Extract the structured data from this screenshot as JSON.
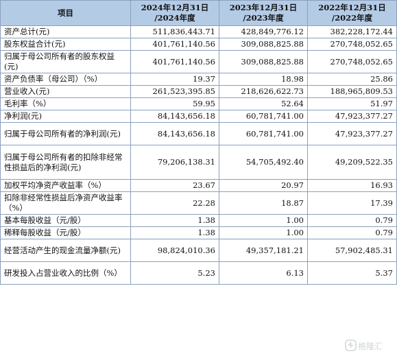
{
  "table": {
    "headers": [
      {
        "line1": "项目",
        "line2": ""
      },
      {
        "line1": "2024年12月31日",
        "line2": "/2024年度"
      },
      {
        "line1": "2023年12月31日",
        "line2": "/2023年度"
      },
      {
        "line1": "2022年12月31日",
        "line2": "/2022年度"
      }
    ],
    "rows": [
      {
        "label": "资产总计(元)",
        "v2024": "511,836,443.71",
        "v2023": "428,849,776.12",
        "v2022": "382,228,172.44"
      },
      {
        "label": "股东权益合计(元)",
        "v2024": "401,761,140.56",
        "v2023": "309,088,825.88",
        "v2022": "270,748,052.65"
      },
      {
        "label": "归属于母公司所有者的股东权益(元)",
        "v2024": "401,761,140.56",
        "v2023": "309,088,825.88",
        "v2022": "270,748,052.65"
      },
      {
        "label": "资产负债率（母公司）（%）",
        "v2024": "19.37",
        "v2023": "18.98",
        "v2022": "25.86"
      },
      {
        "label": "营业收入(元)",
        "v2024": "261,523,395.85",
        "v2023": "218,626,622.73",
        "v2022": "188,965,809.53"
      },
      {
        "label": "毛利率（%）",
        "v2024": "59.95",
        "v2023": "52.64",
        "v2022": "51.97"
      },
      {
        "label": "净利润(元)",
        "v2024": "84,143,656.18",
        "v2023": "60,781,741.00",
        "v2022": "47,923,377.27"
      },
      {
        "label": "归属于母公司所有者的净利润(元)",
        "v2024": "84,143,656.18",
        "v2023": "60,781,741.00",
        "v2022": "47,923,377.27"
      },
      {
        "label": "归属于母公司所有者的扣除非经常性损益后的净利润(元)",
        "v2024": "79,206,138.31",
        "v2023": "54,705,492.40",
        "v2022": "49,209,522.35"
      },
      {
        "label": "加权平均净资产收益率（%）",
        "v2024": "23.67",
        "v2023": "20.97",
        "v2022": "16.93"
      },
      {
        "label": "扣除非经常性损益后净资产收益率（%）",
        "v2024": "22.28",
        "v2023": "18.87",
        "v2022": "17.39"
      },
      {
        "label": "基本每股收益（元/股）",
        "v2024": "1.38",
        "v2023": "1.00",
        "v2022": "0.79"
      },
      {
        "label": "稀释每股收益（元/股）",
        "v2024": "1.38",
        "v2023": "1.00",
        "v2022": "0.79"
      },
      {
        "label": "经营活动产生的现金流量净额(元)",
        "v2024": "98,824,010.36",
        "v2023": "49,357,181.21",
        "v2022": "57,902,485.31"
      },
      {
        "label": "研发投入占营业收入的比例（%）",
        "v2024": "5.23",
        "v2023": "6.13",
        "v2022": "5.37"
      }
    ]
  },
  "watermark": {
    "text": "格隆汇",
    "icon": "gelonghui-logo-icon"
  }
}
